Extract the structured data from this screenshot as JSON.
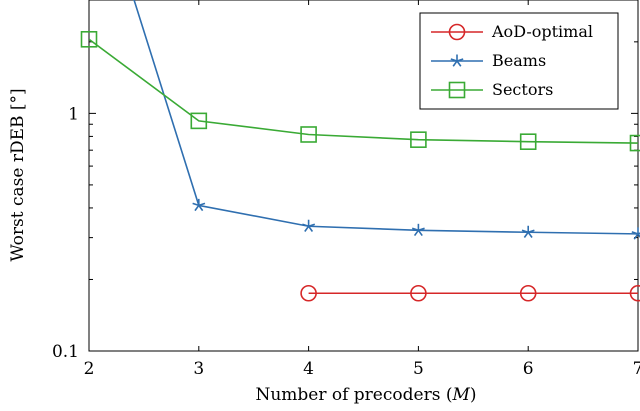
{
  "chart_data": {
    "type": "line",
    "xlabel": "Number of precoders (M)",
    "ylabel": "Worst case rDEB [°]",
    "x_ticks": [
      2,
      3,
      4,
      5,
      6,
      7
    ],
    "y_ticks": [
      {
        "value": 0.1,
        "label": "0.1"
      },
      {
        "value": 1,
        "label": "1"
      }
    ],
    "y_minor_ticks": [
      0.2,
      0.3,
      0.4,
      0.5,
      0.6,
      0.7,
      0.8,
      0.9,
      2,
      3
    ],
    "xlim": [
      2,
      7
    ],
    "ylim": [
      0.1,
      3.0
    ],
    "yscale": "log",
    "grid": false,
    "legend_position": "top-right",
    "series": [
      {
        "name": "AoD-optimal",
        "color": "#d62728",
        "marker": "circle",
        "x": [
          4,
          5,
          6,
          7
        ],
        "y": [
          0.175,
          0.175,
          0.175,
          0.175
        ]
      },
      {
        "name": "Beams",
        "color": "#2f6fb0",
        "marker": "star",
        "x": [
          2,
          3,
          4,
          5,
          6,
          7
        ],
        "y": [
          12.0,
          0.41,
          0.335,
          0.322,
          0.316,
          0.311
        ]
      },
      {
        "name": "Sectors",
        "color": "#3aaa35",
        "marker": "square",
        "x": [
          2,
          3,
          4,
          5,
          6,
          7
        ],
        "y": [
          2.05,
          0.93,
          0.815,
          0.775,
          0.76,
          0.75
        ]
      }
    ]
  }
}
